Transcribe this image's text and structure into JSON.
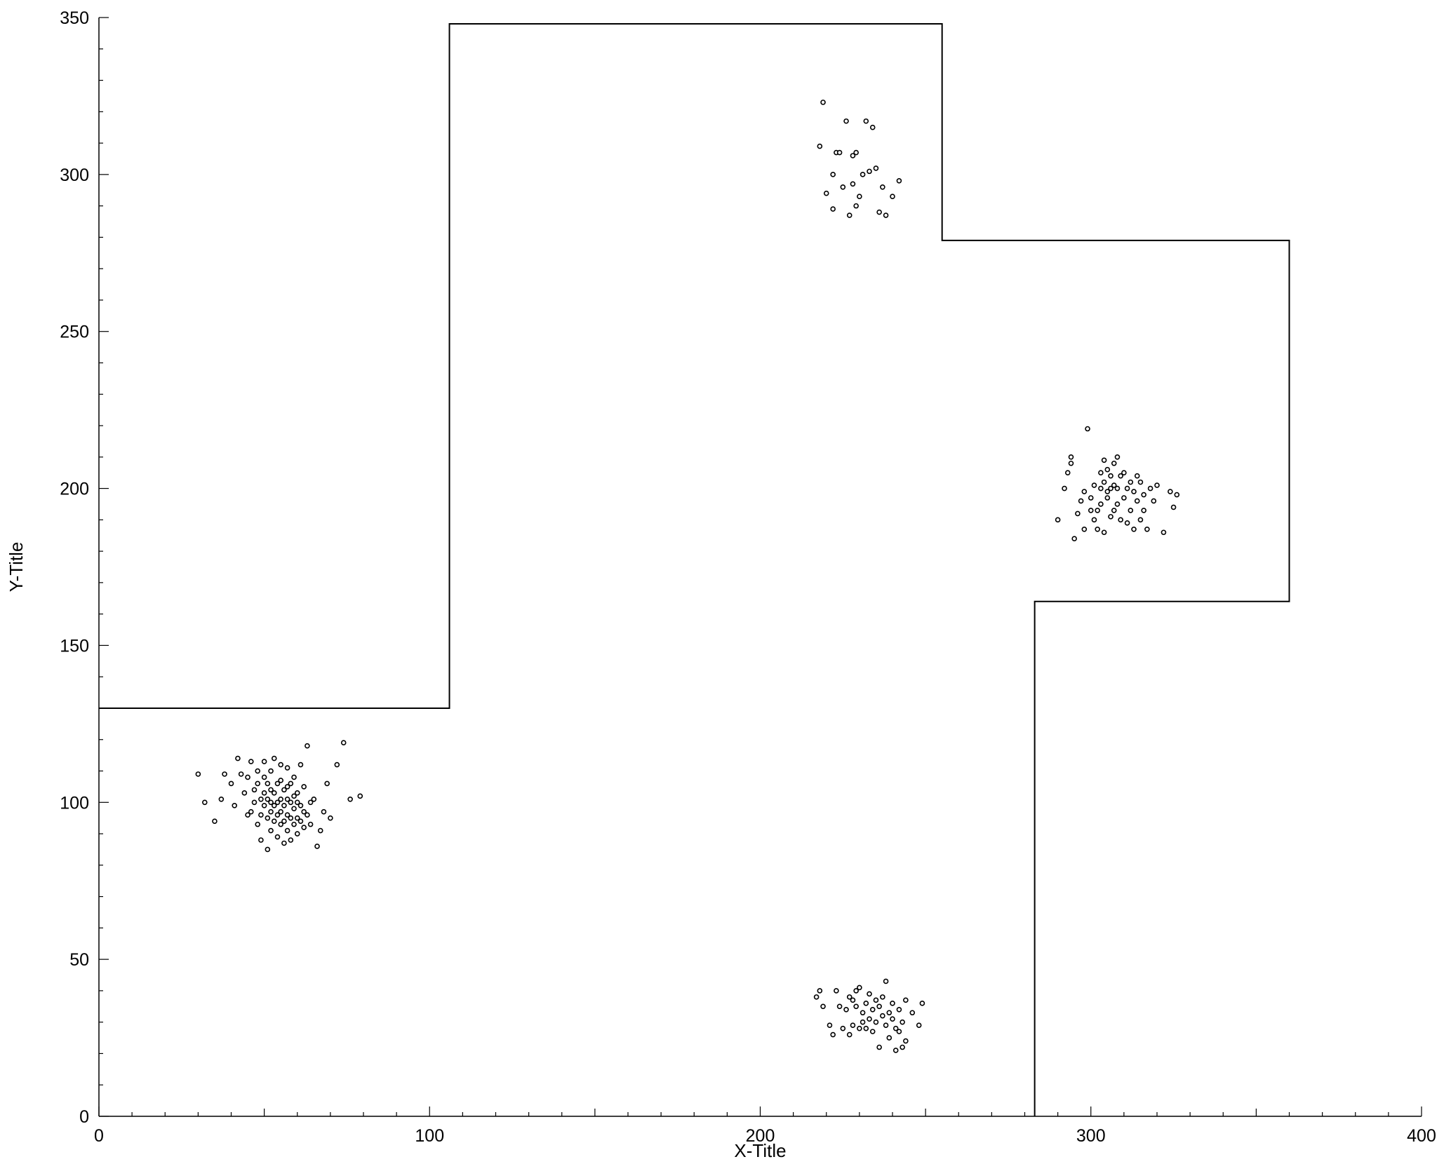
{
  "chart_data": {
    "type": "scatter",
    "xlabel": "X-Title",
    "ylabel": "Y-Title",
    "xlim": [
      0,
      400
    ],
    "ylim": [
      0,
      350
    ],
    "x_ticks": [
      0,
      100,
      200,
      300,
      400
    ],
    "y_ticks": [
      0,
      50,
      100,
      150,
      200,
      250,
      300,
      350
    ],
    "x_tick_labels": [
      "0",
      "100",
      "200",
      "300",
      "400"
    ],
    "y_tick_labels": [
      "0",
      "50",
      "100",
      "150",
      "200",
      "250",
      "300",
      "350"
    ],
    "x_minor_step": 10,
    "y_minor_step": 10,
    "grid": false,
    "marker_color": "#000000",
    "line_color": "#000000",
    "boundary_line": {
      "x": [
        0,
        106,
        106,
        255,
        255,
        360,
        360,
        283,
        283
      ],
      "y": [
        130,
        130,
        348,
        348,
        279,
        279,
        164,
        164,
        0
      ]
    },
    "series": [
      {
        "x": [
          30,
          32,
          35,
          37,
          38,
          40,
          41,
          42,
          43,
          44,
          45,
          45,
          46,
          46,
          47,
          47,
          48,
          48,
          48,
          49,
          49,
          49,
          50,
          50,
          50,
          50,
          51,
          51,
          51,
          51,
          52,
          52,
          52,
          52,
          52,
          53,
          53,
          53,
          53,
          54,
          54,
          54,
          54,
          55,
          55,
          55,
          55,
          55,
          56,
          56,
          56,
          56,
          57,
          57,
          57,
          57,
          57,
          58,
          58,
          58,
          58,
          59,
          59,
          59,
          59,
          60,
          60,
          60,
          60,
          61,
          61,
          61,
          62,
          62,
          62,
          63,
          63,
          64,
          64,
          65,
          66,
          67,
          68,
          69,
          70,
          72,
          74,
          76,
          79
        ],
        "y": [
          109,
          100,
          94,
          101,
          109,
          106,
          99,
          114,
          109,
          103,
          96,
          108,
          113,
          97,
          100,
          104,
          93,
          106,
          110,
          88,
          96,
          101,
          99,
          103,
          108,
          113,
          85,
          95,
          101,
          106,
          91,
          97,
          100,
          104,
          110,
          94,
          99,
          103,
          114,
          89,
          96,
          100,
          106,
          93,
          97,
          101,
          107,
          112,
          87,
          94,
          99,
          104,
          91,
          96,
          101,
          105,
          111,
          88,
          95,
          100,
          106,
          93,
          98,
          102,
          108,
          90,
          95,
          100,
          103,
          94,
          99,
          112,
          92,
          97,
          105,
          96,
          118,
          93,
          100,
          101,
          86,
          91,
          97,
          106,
          95,
          112,
          119,
          101,
          102
        ],
        "name": ""
      },
      {
        "x": [
          218,
          219,
          220,
          222,
          222,
          223,
          224,
          225,
          226,
          227,
          228,
          228,
          229,
          229,
          230,
          231,
          232,
          233,
          234,
          235,
          236,
          237,
          238,
          240,
          242
        ],
        "y": [
          309,
          323,
          294,
          300,
          289,
          307,
          307,
          296,
          317,
          287,
          306,
          297,
          307,
          290,
          293,
          300,
          317,
          301,
          315,
          302,
          288,
          296,
          287,
          293,
          298
        ],
        "name": ""
      },
      {
        "x": [
          217,
          218,
          219,
          221,
          222,
          223,
          224,
          225,
          226,
          227,
          227,
          228,
          228,
          229,
          229,
          230,
          230,
          231,
          231,
          232,
          232,
          233,
          233,
          234,
          234,
          235,
          235,
          236,
          236,
          237,
          237,
          238,
          238,
          239,
          239,
          240,
          240,
          241,
          241,
          242,
          242,
          243,
          243,
          244,
          244,
          246,
          248,
          249
        ],
        "y": [
          38,
          40,
          35,
          29,
          26,
          40,
          35,
          28,
          34,
          26,
          38,
          29,
          37,
          35,
          40,
          28,
          41,
          33,
          30,
          36,
          28,
          39,
          31,
          27,
          34,
          30,
          37,
          22,
          35,
          32,
          38,
          29,
          43,
          25,
          33,
          31,
          36,
          21,
          28,
          34,
          27,
          30,
          22,
          37,
          24,
          33,
          29,
          36
        ],
        "name": ""
      },
      {
        "x": [
          290,
          292,
          293,
          294,
          294,
          295,
          296,
          297,
          298,
          298,
          299,
          300,
          300,
          301,
          301,
          302,
          302,
          303,
          303,
          303,
          304,
          304,
          304,
          305,
          305,
          305,
          306,
          306,
          306,
          307,
          307,
          307,
          308,
          308,
          308,
          309,
          309,
          310,
          310,
          311,
          311,
          312,
          312,
          313,
          313,
          314,
          314,
          315,
          315,
          316,
          316,
          317,
          318,
          319,
          320,
          322,
          324,
          325,
          326
        ],
        "y": [
          190,
          200,
          205,
          208,
          210,
          184,
          192,
          196,
          187,
          199,
          219,
          193,
          197,
          190,
          201,
          187,
          193,
          205,
          195,
          200,
          209,
          202,
          186,
          197,
          199,
          206,
          191,
          200,
          204,
          193,
          201,
          208,
          195,
          200,
          210,
          190,
          204,
          197,
          205,
          189,
          200,
          193,
          202,
          187,
          199,
          196,
          204,
          190,
          202,
          193,
          198,
          187,
          200,
          196,
          201,
          186,
          199,
          194,
          198
        ],
        "name": ""
      }
    ]
  }
}
